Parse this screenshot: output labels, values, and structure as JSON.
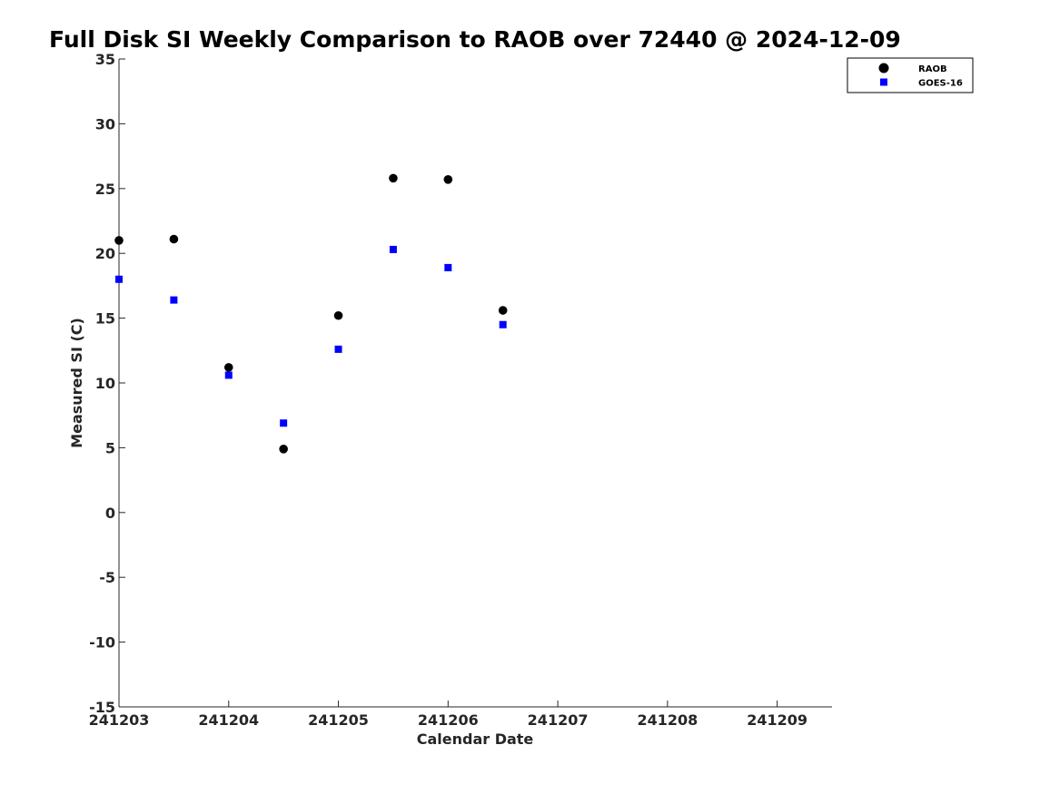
{
  "chart_data": {
    "type": "scatter",
    "title": "Full Disk SI Weekly Comparison to RAOB over 72440 @ 2024-12-09",
    "xlabel": "Calendar Date",
    "ylabel": "Measured SI (C)",
    "xlim": [
      241203,
      241209.5
    ],
    "ylim": [
      -15,
      35
    ],
    "x_ticks": [
      241203,
      241204,
      241205,
      241206,
      241207,
      241208,
      241209
    ],
    "x_tick_labels": [
      "241203",
      "241204",
      "241205",
      "241206",
      "241207",
      "241208",
      "241209"
    ],
    "y_ticks": [
      -15,
      -10,
      -5,
      0,
      5,
      10,
      15,
      20,
      25,
      30,
      35
    ],
    "y_tick_labels": [
      "-15",
      "-10",
      "-5",
      "0",
      "5",
      "10",
      "15",
      "20",
      "25",
      "30",
      "35"
    ],
    "grid": false,
    "legend_position": "top-right",
    "series": [
      {
        "name": "RAOB",
        "marker": "circle",
        "color": "#000000",
        "points": [
          {
            "x": 241203.0,
            "y": 21.0
          },
          {
            "x": 241203.5,
            "y": 21.1
          },
          {
            "x": 241204.0,
            "y": 11.2
          },
          {
            "x": 241204.5,
            "y": 4.9
          },
          {
            "x": 241205.0,
            "y": 15.2
          },
          {
            "x": 241205.5,
            "y": 25.8
          },
          {
            "x": 241206.0,
            "y": 25.7
          },
          {
            "x": 241206.5,
            "y": 15.6
          }
        ]
      },
      {
        "name": "GOES-16",
        "marker": "square",
        "color": "#0000ff",
        "points": [
          {
            "x": 241203.0,
            "y": 18.0
          },
          {
            "x": 241203.5,
            "y": 16.4
          },
          {
            "x": 241204.0,
            "y": 10.6
          },
          {
            "x": 241204.5,
            "y": 6.9
          },
          {
            "x": 241205.0,
            "y": 12.6
          },
          {
            "x": 241205.5,
            "y": 20.3
          },
          {
            "x": 241206.0,
            "y": 18.9
          },
          {
            "x": 241206.5,
            "y": 14.5
          }
        ]
      }
    ]
  }
}
